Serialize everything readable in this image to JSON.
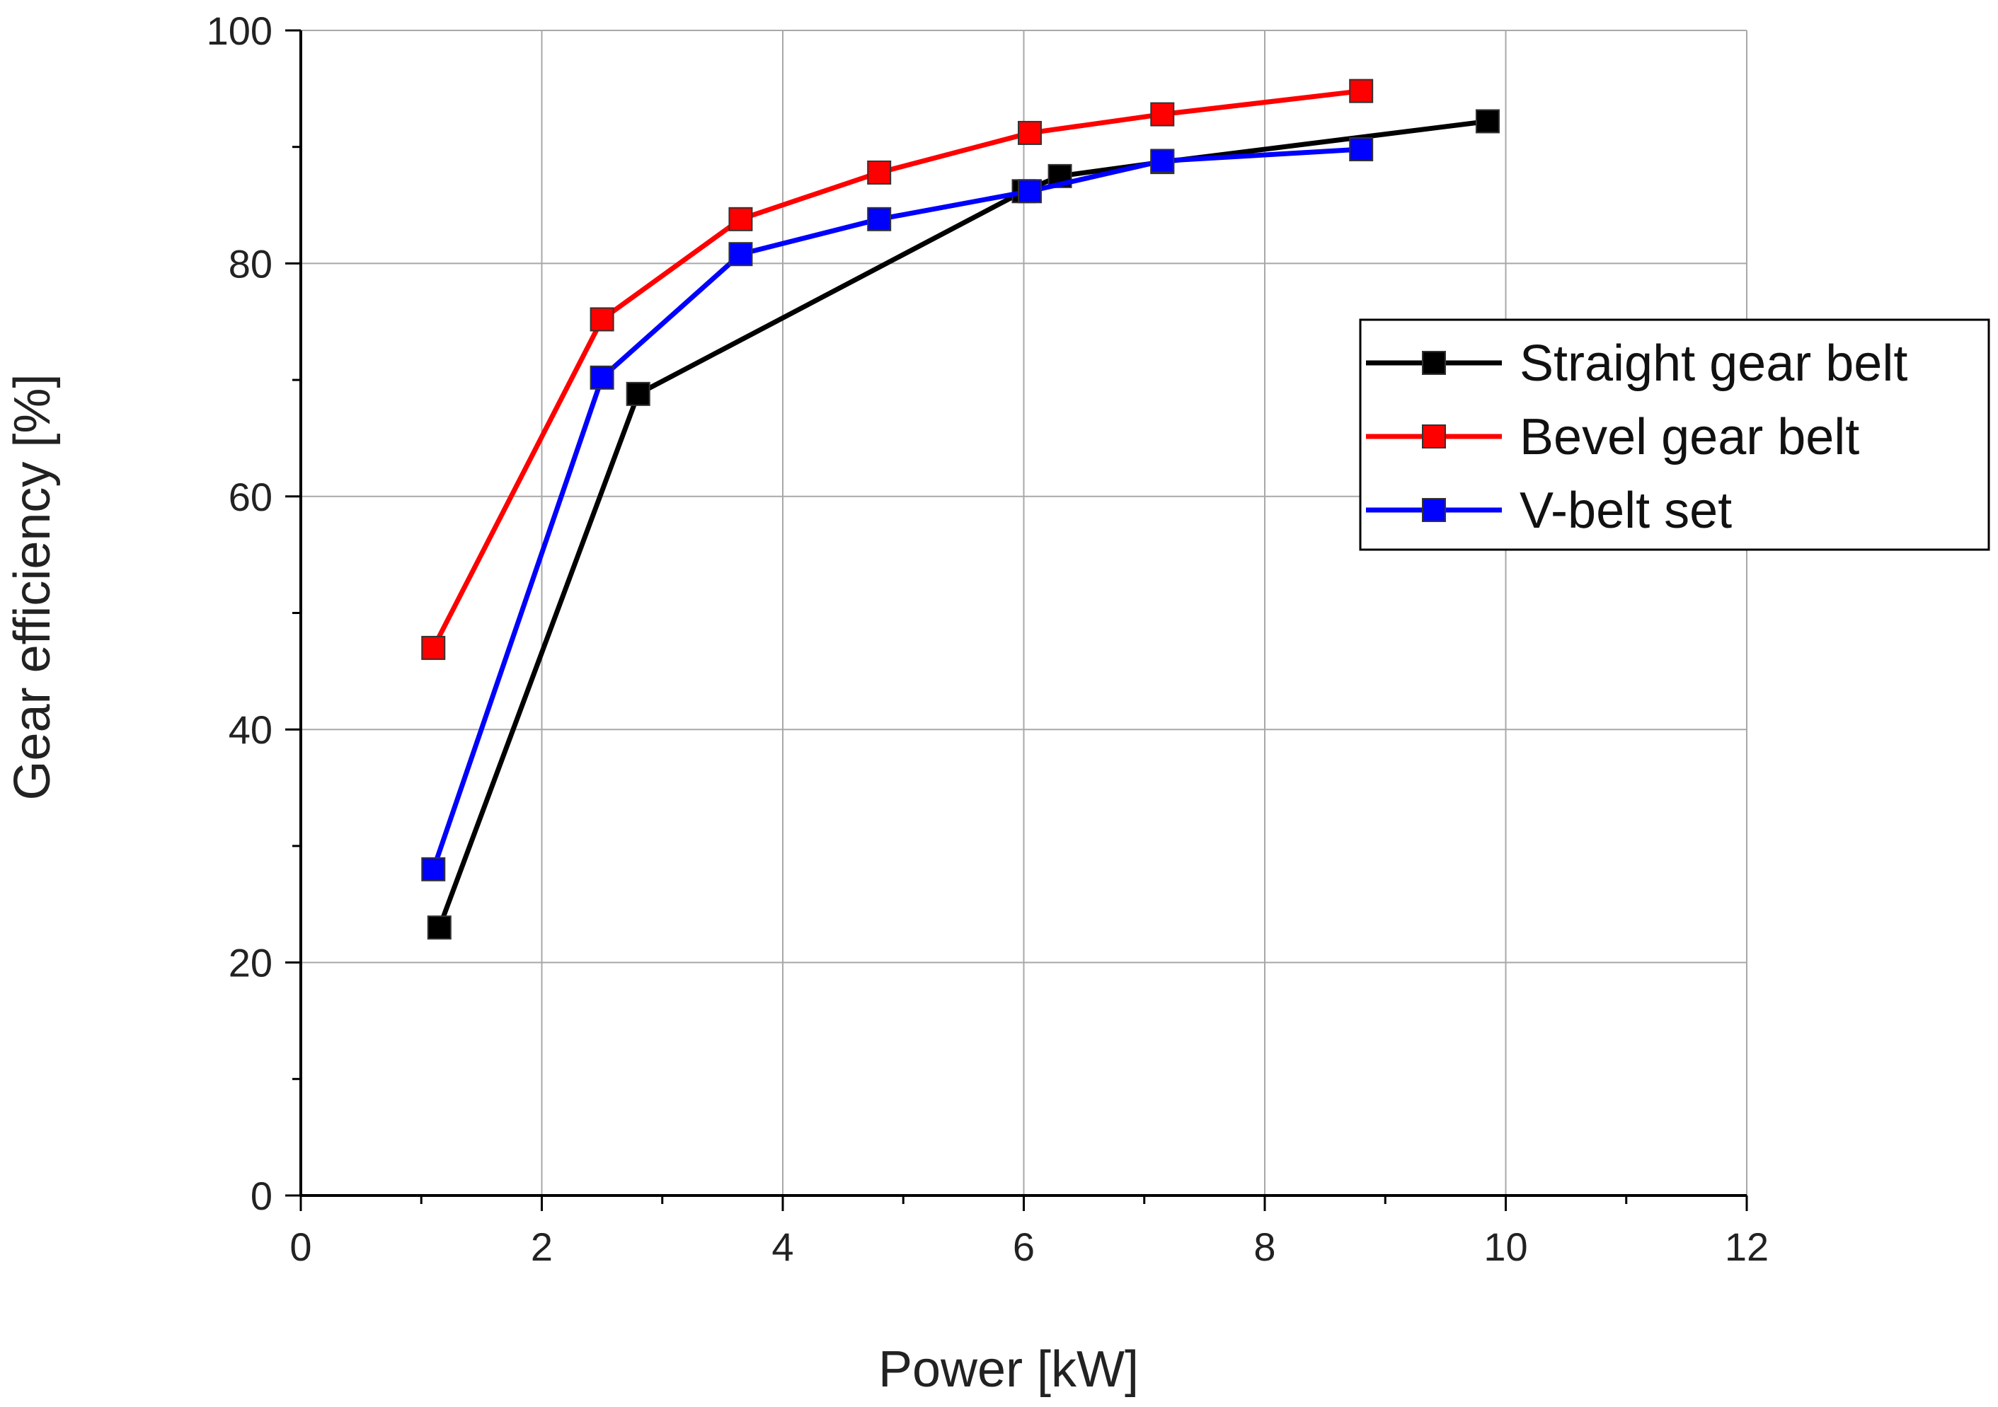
{
  "chart_data": {
    "type": "line",
    "title": "",
    "xlabel": "Power [kW]",
    "ylabel": "Gear efficiency [%]",
    "xlim": [
      0,
      12
    ],
    "ylim": [
      0,
      100
    ],
    "xticks": [
      0,
      2,
      4,
      6,
      8,
      10,
      12
    ],
    "yticks": [
      0,
      20,
      40,
      60,
      80,
      100
    ],
    "xtick_labels": [
      "0",
      "2",
      "4",
      "6",
      "8",
      "10",
      "12"
    ],
    "ytick_labels": [
      "0",
      "20",
      "40",
      "60",
      "80",
      "100"
    ],
    "grid": true,
    "legend_position": "right",
    "series": [
      {
        "name": "Straight gear belt",
        "color": "#000000",
        "marker": "square",
        "points": [
          [
            1.15,
            23.0
          ],
          [
            2.8,
            68.8
          ],
          [
            6.0,
            86.2
          ],
          [
            6.3,
            87.5
          ],
          [
            7.15,
            88.7
          ],
          [
            9.85,
            92.2
          ]
        ]
      },
      {
        "name": "Bevel gear belt",
        "color": "#ff0000",
        "marker": "square",
        "points": [
          [
            1.1,
            47.0
          ],
          [
            2.5,
            75.2
          ],
          [
            3.65,
            83.8
          ],
          [
            4.8,
            87.8
          ],
          [
            6.05,
            91.2
          ],
          [
            7.15,
            92.8
          ],
          [
            8.8,
            94.8
          ]
        ]
      },
      {
        "name": "V-belt set",
        "color": "#0000ff",
        "marker": "square",
        "points": [
          [
            1.1,
            28.0
          ],
          [
            2.5,
            70.2
          ],
          [
            3.65,
            80.8
          ],
          [
            4.8,
            83.8
          ],
          [
            6.05,
            86.2
          ],
          [
            7.15,
            88.8
          ],
          [
            8.8,
            89.8
          ]
        ]
      }
    ]
  }
}
